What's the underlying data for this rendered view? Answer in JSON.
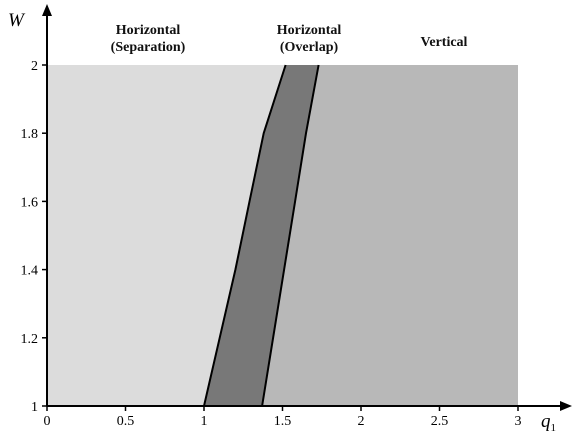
{
  "chart_data": {
    "type": "area",
    "title": "",
    "xlabel": {
      "main": "q",
      "sub": "1"
    },
    "ylabel": "W",
    "xlim": [
      0,
      3
    ],
    "ylim": [
      1,
      2
    ],
    "x_ticks": [
      "0",
      "0.5",
      "1",
      "1.5",
      "2",
      "2.5",
      "3"
    ],
    "y_ticks": [
      "1",
      "1.2",
      "1.4",
      "1.6",
      "1.8",
      "2"
    ],
    "grid": false,
    "regions": [
      {
        "lines": [
          "Horizontal",
          "(Separation)"
        ],
        "color": "#dcdcdc",
        "polygon": [
          [
            0,
            1
          ],
          [
            1.0,
            1
          ],
          [
            1.1,
            1.2
          ],
          [
            1.2,
            1.4
          ],
          [
            1.29,
            1.6
          ],
          [
            1.38,
            1.8
          ],
          [
            1.52,
            2
          ],
          [
            0,
            2
          ]
        ]
      },
      {
        "lines": [
          "Horizontal",
          "(Overlap)"
        ],
        "color": "#787878",
        "polygon": [
          [
            1.0,
            1
          ],
          [
            1.37,
            1
          ],
          [
            1.44,
            1.2
          ],
          [
            1.51,
            1.4
          ],
          [
            1.58,
            1.6
          ],
          [
            1.65,
            1.8
          ],
          [
            1.73,
            2
          ],
          [
            1.52,
            2
          ],
          [
            1.38,
            1.8
          ],
          [
            1.29,
            1.6
          ],
          [
            1.2,
            1.4
          ],
          [
            1.1,
            1.2
          ]
        ]
      },
      {
        "lines": [
          "Vertical"
        ],
        "color": "#b8b8b8",
        "polygon": [
          [
            1.37,
            1
          ],
          [
            3,
            1
          ],
          [
            3,
            2
          ],
          [
            1.73,
            2
          ],
          [
            1.65,
            1.8
          ],
          [
            1.58,
            1.6
          ],
          [
            1.51,
            1.4
          ],
          [
            1.44,
            1.2
          ]
        ]
      }
    ],
    "boundaries": [
      {
        "points": [
          [
            1.0,
            1
          ],
          [
            1.1,
            1.2
          ],
          [
            1.2,
            1.4
          ],
          [
            1.29,
            1.6
          ],
          [
            1.38,
            1.8
          ],
          [
            1.52,
            2
          ]
        ]
      },
      {
        "points": [
          [
            1.37,
            1
          ],
          [
            1.44,
            1.2
          ],
          [
            1.51,
            1.4
          ],
          [
            1.58,
            1.6
          ],
          [
            1.65,
            1.8
          ],
          [
            1.73,
            2
          ]
        ]
      }
    ]
  }
}
